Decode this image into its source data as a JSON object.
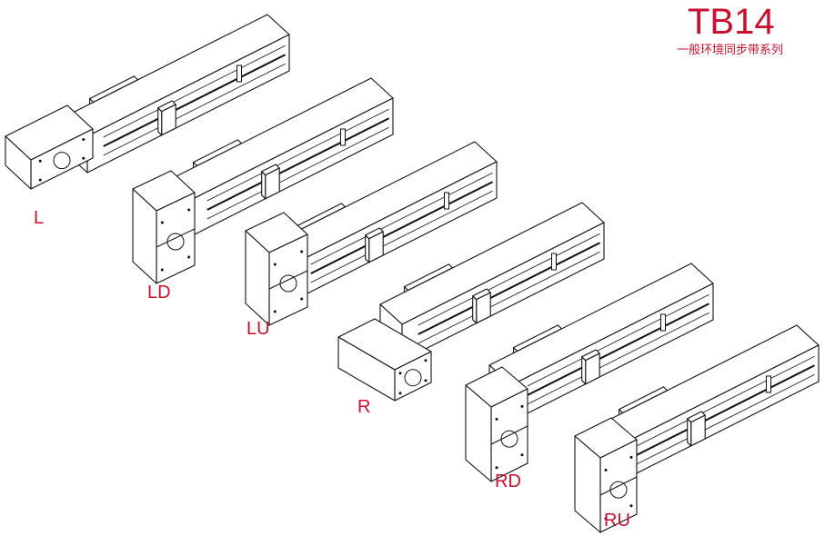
{
  "header": {
    "title": "TB14",
    "subtitle": "一般环境同步带系列"
  },
  "accent_color": "#c8102e",
  "line_color": "#111111",
  "variants": [
    {
      "label": "L",
      "motor_mount": "left"
    },
    {
      "label": "LD",
      "motor_mount": "left-down"
    },
    {
      "label": "LU",
      "motor_mount": "left-up"
    },
    {
      "label": "R",
      "motor_mount": "right"
    },
    {
      "label": "RD",
      "motor_mount": "right-down"
    },
    {
      "label": "RU",
      "motor_mount": "right-up"
    }
  ]
}
